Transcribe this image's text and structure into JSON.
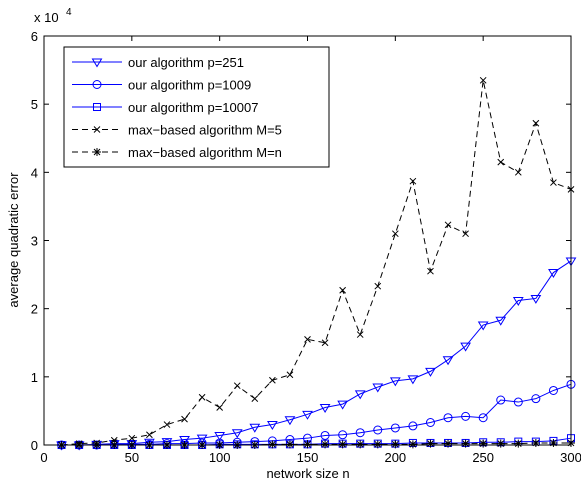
{
  "chart_data": {
    "type": "line",
    "xlabel": "network size n",
    "ylabel": "average quadratic error",
    "y_scale_label": "x 10",
    "y_scale_power": "4",
    "x": [
      10,
      20,
      30,
      40,
      50,
      60,
      70,
      80,
      90,
      100,
      110,
      120,
      130,
      140,
      150,
      160,
      170,
      180,
      190,
      200,
      210,
      220,
      230,
      240,
      250,
      260,
      270,
      280,
      290,
      300
    ],
    "xlim": [
      0,
      300
    ],
    "xticks": [
      0,
      50,
      100,
      150,
      200,
      250,
      300
    ],
    "ylim": [
      0,
      6
    ],
    "yticks": [
      0,
      1,
      2,
      3,
      4,
      5,
      6
    ],
    "legend": "upper left",
    "series": [
      {
        "name": "our algorithm p=251",
        "color": "#0000ff",
        "marker": "triangle-down",
        "dash": "solid",
        "values": [
          0,
          0,
          0.01,
          0.02,
          0.02,
          0.04,
          0.05,
          0.08,
          0.1,
          0.14,
          0.18,
          0.26,
          0.3,
          0.37,
          0.45,
          0.55,
          0.6,
          0.75,
          0.85,
          0.94,
          0.97,
          1.08,
          1.25,
          1.45,
          1.76,
          1.83,
          2.12,
          2.15,
          2.53,
          2.7
        ]
      },
      {
        "name": "our algorithm p=1009",
        "color": "#0000ff",
        "marker": "circle",
        "dash": "solid",
        "values": [
          0,
          0,
          0,
          0.01,
          0.01,
          0.01,
          0.02,
          0.02,
          0.03,
          0.03,
          0.04,
          0.05,
          0.06,
          0.08,
          0.1,
          0.14,
          0.15,
          0.18,
          0.22,
          0.25,
          0.28,
          0.33,
          0.4,
          0.42,
          0.4,
          0.66,
          0.63,
          0.68,
          0.8,
          0.89
        ]
      },
      {
        "name": "our algorithm p=10007",
        "color": "#0000ff",
        "marker": "square",
        "dash": "solid",
        "values": [
          0,
          0,
          0,
          0,
          0,
          0,
          0,
          0,
          0,
          0.01,
          0.01,
          0.01,
          0.01,
          0.01,
          0.01,
          0.02,
          0.02,
          0.02,
          0.02,
          0.02,
          0.03,
          0.03,
          0.03,
          0.03,
          0.04,
          0.04,
          0.05,
          0.05,
          0.06,
          0.1
        ]
      },
      {
        "name": "max−based algorithm M=5",
        "color": "#000000",
        "marker": "x",
        "dash": "dashed",
        "values": [
          0,
          0.02,
          0.03,
          0.07,
          0.1,
          0.15,
          0.3,
          0.38,
          0.7,
          0.55,
          0.87,
          0.68,
          0.95,
          1.03,
          1.55,
          1.5,
          2.27,
          1.62,
          2.33,
          3.1,
          3.87,
          2.55,
          3.23,
          3.1,
          5.35,
          4.15,
          4.0,
          4.72,
          3.85,
          3.75
        ]
      },
      {
        "name": "max−based algorithm M=n",
        "color": "#000000",
        "marker": "asterisk",
        "dash": "dashed",
        "values": [
          0,
          0,
          0,
          0,
          0,
          0,
          0,
          0,
          0,
          0,
          0,
          0,
          0.01,
          0.01,
          0.01,
          0.01,
          0.01,
          0.01,
          0.01,
          0.01,
          0.01,
          0.02,
          0.02,
          0.02,
          0.02,
          0.02,
          0.02,
          0.03,
          0.03,
          0.03
        ]
      }
    ]
  }
}
